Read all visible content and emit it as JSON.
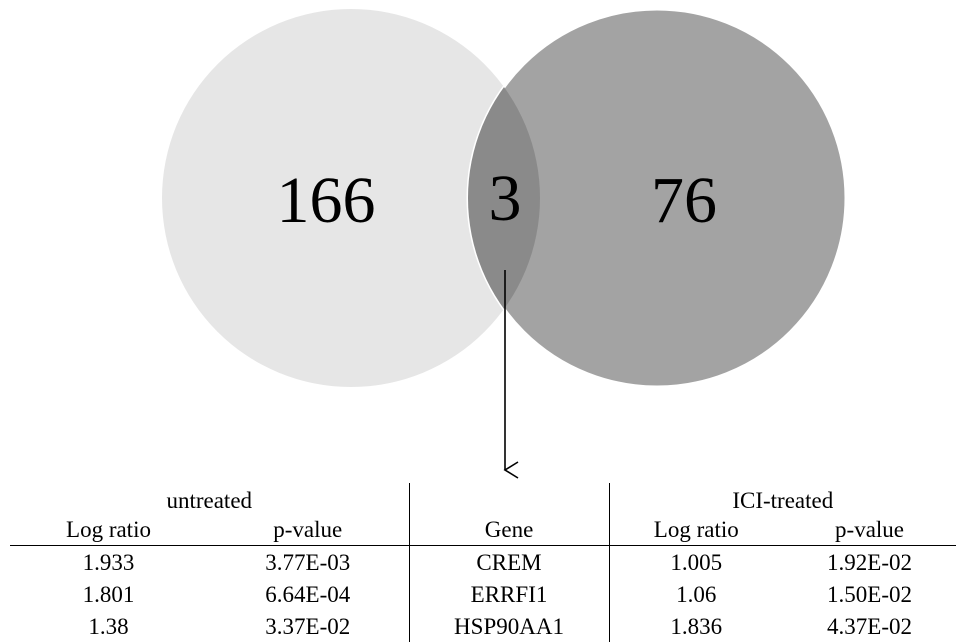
{
  "venn": {
    "left_only_count": "166",
    "overlap_count": "3",
    "right_only_count": "76",
    "colors": {
      "left_set": "#e6e6e6",
      "right_set": "#a3a3a3",
      "overlap": "#8a8a8a",
      "border": "#ffffff",
      "arrow": "#000000"
    }
  },
  "table": {
    "groups": {
      "left": "untreated",
      "right": "ICI-treated"
    },
    "headers": {
      "untreated_log_ratio": "Log ratio",
      "untreated_p_value": "p-value",
      "gene": "Gene",
      "ici_log_ratio": "Log ratio",
      "ici_p_value": "p-value"
    },
    "rows": [
      {
        "untreated_log_ratio": "1.933",
        "untreated_p_value": "3.77E-03",
        "gene": "CREM",
        "ici_log_ratio": "1.005",
        "ici_p_value": "1.92E-02"
      },
      {
        "untreated_log_ratio": "1.801",
        "untreated_p_value": "6.64E-04",
        "gene": "ERRFI1",
        "ici_log_ratio": "1.06",
        "ici_p_value": "1.50E-02"
      },
      {
        "untreated_log_ratio": "1.38",
        "untreated_p_value": "3.37E-02",
        "gene": "HSP90AA1",
        "ici_log_ratio": "1.836",
        "ici_p_value": "4.37E-02"
      }
    ]
  }
}
